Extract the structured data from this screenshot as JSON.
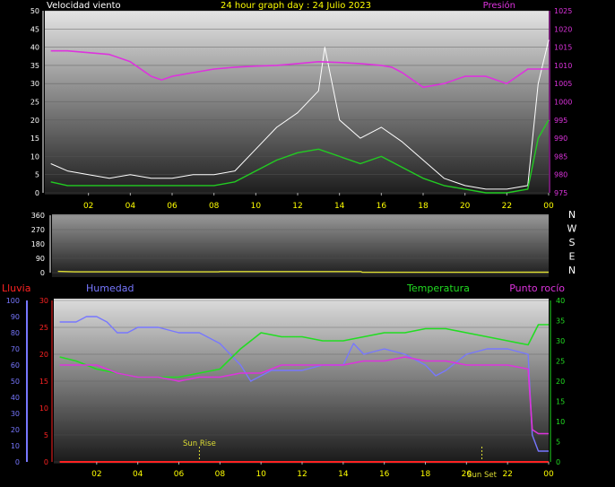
{
  "header": {
    "top_title": "24 hour graph day : 24 Julio 2023",
    "wind_label": "Velocidad viento",
    "pressure_label": "Presión"
  },
  "colors": {
    "wind_gust": "#ffffff",
    "wind_avg": "#22cc22",
    "pressure": "#dd33dd",
    "direction": "#dddd33",
    "rain": "#ff2222",
    "humidity": "#7777ff",
    "temperature": "#22dd22",
    "dewpoint": "#dd33dd",
    "sun": "#dddd33",
    "title": "#ffff00"
  },
  "x_tick_labels": [
    "02",
    "04",
    "06",
    "08",
    "10",
    "12",
    "14",
    "16",
    "18",
    "20",
    "22",
    "00"
  ],
  "chart_data": [
    {
      "type": "line",
      "panel": "wind_pressure",
      "y_left_ticks": [
        0,
        5,
        10,
        15,
        20,
        25,
        30,
        35,
        40,
        45,
        50
      ],
      "y_right_ticks": [
        975,
        980,
        985,
        990,
        995,
        1000,
        1005,
        1010,
        1015,
        1020,
        1025
      ],
      "ylim_left": [
        0,
        50
      ],
      "ylim_right": [
        975,
        1025
      ],
      "series": [
        {
          "name": "Velocidad viento",
          "axis": "left",
          "role": "gust",
          "x": [
            0.2,
            1,
            2,
            3,
            4,
            5,
            6,
            7,
            8,
            9,
            10,
            11,
            12,
            13,
            13.3,
            14,
            15,
            16,
            17,
            18,
            19,
            20,
            21,
            22,
            23,
            23.5,
            24
          ],
          "values": [
            8,
            6,
            5,
            4,
            5,
            4,
            4,
            5,
            5,
            6,
            12,
            18,
            22,
            28,
            40,
            20,
            15,
            18,
            14,
            9,
            4,
            2,
            1,
            1,
            2,
            30,
            42
          ]
        },
        {
          "name": "",
          "axis": "left",
          "role": "average",
          "x": [
            0.2,
            1,
            2,
            3,
            4,
            5,
            6,
            7,
            8,
            9,
            10,
            11,
            12,
            13,
            14,
            15,
            16,
            17,
            18,
            19,
            20,
            21,
            22,
            23,
            23.5,
            24
          ],
          "values": [
            3,
            2,
            2,
            2,
            2,
            2,
            2,
            2,
            2,
            3,
            6,
            9,
            11,
            12,
            10,
            8,
            10,
            7,
            4,
            2,
            1,
            0,
            0,
            1,
            15,
            20
          ]
        },
        {
          "name": "Presión",
          "axis": "right",
          "x": [
            0.2,
            1,
            2,
            3,
            4,
            5,
            5.5,
            6,
            7,
            8,
            9,
            10,
            11,
            12,
            13,
            14,
            15,
            16,
            16.5,
            17,
            18,
            19,
            20,
            21,
            22,
            23,
            24
          ],
          "values": [
            1014,
            1014,
            1013.5,
            1013,
            1011,
            1007,
            1006,
            1007,
            1008,
            1009,
            1009.5,
            1009.8,
            1010,
            1010.5,
            1011,
            1010.8,
            1010.5,
            1010,
            1009.5,
            1008,
            1004,
            1005,
            1007,
            1007,
            1005,
            1009,
            1009
          ]
        }
      ]
    },
    {
      "type": "line",
      "panel": "wind_direction",
      "y_left_ticks": [
        0,
        90,
        180,
        270,
        360
      ],
      "ylim": [
        0,
        360
      ],
      "direction_labels": [
        "N",
        "W",
        "S",
        "E",
        "N"
      ],
      "series": [
        {
          "name": "",
          "axis": "left",
          "x": [
            0.2,
            1,
            4,
            8,
            8.05,
            12,
            14.9,
            14.95,
            20,
            24
          ],
          "values": [
            8,
            5,
            5,
            5,
            7,
            7,
            7,
            2,
            2,
            3
          ]
        }
      ]
    },
    {
      "type": "line",
      "panel": "rain_humidity_temp",
      "labels": {
        "rain": "Lluvia",
        "humidity": "Humedad",
        "temperature": "Temperatura",
        "dewpoint": "Punto rocío"
      },
      "y_rain_ticks": [
        0,
        10,
        20,
        30,
        40,
        50,
        60,
        70,
        80,
        90,
        100
      ],
      "y_hum_ticks": [
        0,
        5,
        10,
        15,
        20,
        25,
        30
      ],
      "y_right_ticks": [
        0,
        5,
        10,
        15,
        20,
        25,
        30,
        35,
        40
      ],
      "ylim_rain": [
        0,
        100
      ],
      "ylim_hum": [
        0,
        30
      ],
      "ylim_right": [
        0,
        40
      ],
      "series": [
        {
          "name": "Lluvia",
          "axis": "rain",
          "x": [
            0.2,
            24
          ],
          "values": [
            0,
            0
          ]
        },
        {
          "name": "Humedad",
          "axis": "hum",
          "x": [
            0.2,
            1,
            1.5,
            2,
            2.5,
            3,
            3.5,
            4,
            5,
            6,
            7,
            8,
            8.5,
            9,
            9.5,
            10,
            10.5,
            11,
            12,
            13,
            14,
            14.5,
            15,
            16,
            17,
            18,
            18.5,
            19,
            20,
            21,
            22,
            23,
            23.2,
            23.5,
            24
          ],
          "values": [
            26,
            26,
            27,
            27,
            26,
            24,
            24,
            25,
            25,
            24,
            24,
            22,
            20,
            18,
            15,
            16,
            17,
            17,
            17,
            18,
            18,
            22,
            20,
            21,
            20,
            18,
            16,
            17,
            20,
            21,
            21,
            20,
            5,
            2,
            2
          ]
        },
        {
          "name": "Temperatura",
          "axis": "right",
          "x": [
            0.2,
            1,
            2,
            3,
            4,
            5,
            6,
            7,
            8,
            9,
            10,
            11,
            12,
            13,
            14,
            15,
            16,
            17,
            18,
            19,
            20,
            21,
            22,
            23,
            23.5,
            24
          ],
          "values": [
            26,
            25,
            23,
            22,
            21,
            21,
            21,
            22,
            23,
            28,
            32,
            31,
            31,
            30,
            30,
            31,
            32,
            32,
            33,
            33,
            32,
            31,
            30,
            29,
            34,
            34
          ]
        },
        {
          "name": "Punto rocío",
          "axis": "right",
          "x": [
            0.2,
            1,
            2,
            3,
            4,
            5,
            6,
            7,
            8,
            9,
            10,
            11,
            12,
            13,
            14,
            15,
            16,
            17,
            18,
            19,
            20,
            21,
            22,
            23,
            23.2,
            23.5,
            24
          ],
          "values": [
            24,
            24,
            24,
            22,
            21,
            21,
            20,
            21,
            21,
            22,
            22,
            24,
            24,
            24,
            24,
            25,
            25,
            26,
            25,
            25,
            24,
            24,
            24,
            23,
            8,
            7,
            7
          ]
        }
      ],
      "annotations": [
        {
          "text": "Sun Rise",
          "x": 7.0
        },
        {
          "text": "Sun Set",
          "x": 20.75
        }
      ]
    }
  ]
}
